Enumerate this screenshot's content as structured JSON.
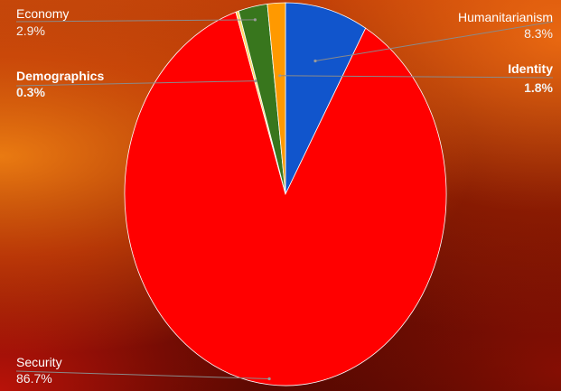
{
  "chart_data": {
    "type": "pie",
    "title": "",
    "slices": [
      {
        "label": "Humanitarianism",
        "value": 8.3,
        "value_label": "8.3%",
        "color": "#1155cc",
        "bold": false
      },
      {
        "label": "Security",
        "value": 86.7,
        "value_label": "86.7%",
        "color": "#ff0000",
        "bold": false
      },
      {
        "label": "Demographics",
        "value": 0.3,
        "value_label": "0.3%",
        "color": "#ffd966",
        "bold": true
      },
      {
        "label": "Economy",
        "value": 2.9,
        "value_label": "2.9%",
        "color": "#38761d",
        "bold": false
      },
      {
        "label": "Identity",
        "value": 1.8,
        "value_label": "1.8%",
        "color": "#ff9900",
        "bold": true
      }
    ],
    "start_angle": "12 o'clock",
    "direction": "clockwise",
    "legend": "none"
  }
}
